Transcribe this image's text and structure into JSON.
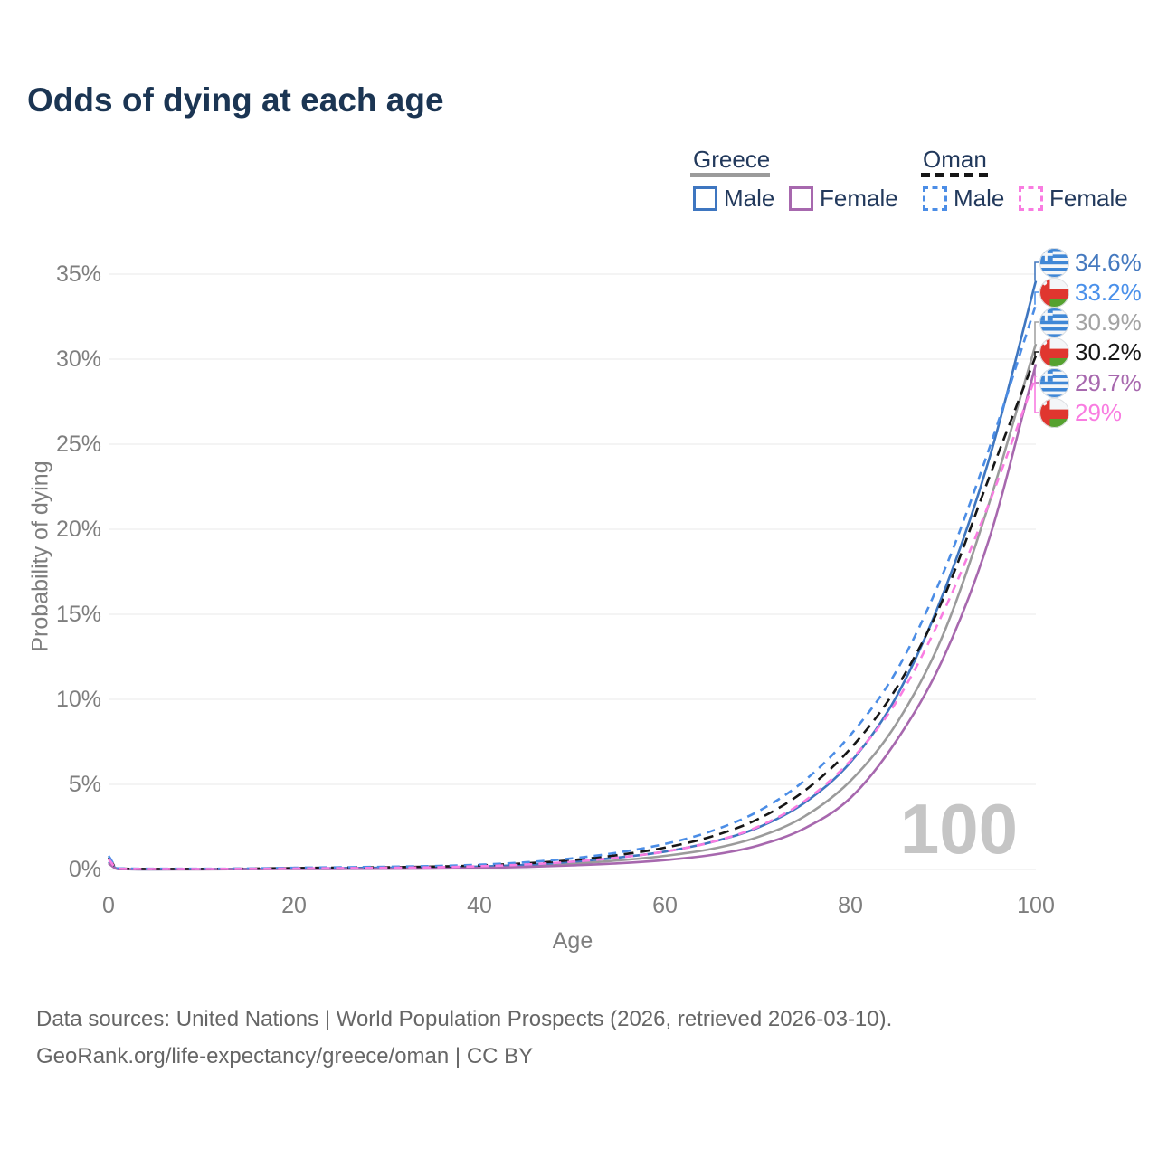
{
  "title": "Odds of dying at each age",
  "legend": {
    "groups": [
      {
        "label": "Greece",
        "line_style": "solid",
        "underline_color": "#9b9b9b",
        "items": [
          {
            "label": "Male",
            "color": "#3e76c0"
          },
          {
            "label": "Female",
            "color": "#a768ae"
          }
        ]
      },
      {
        "label": "Oman",
        "line_style": "dashed",
        "underline_color": "#161616",
        "items": [
          {
            "label": "Male",
            "color": "#4b8de6"
          },
          {
            "label": "Female",
            "color": "#f97ce1"
          }
        ]
      }
    ]
  },
  "chart_data": {
    "type": "line",
    "title": "Odds of dying at each age",
    "xlabel": "Age",
    "ylabel": "Probability of dying",
    "x_range": [
      0,
      100
    ],
    "y_range_percent": [
      0,
      35
    ],
    "grid": "horizontal",
    "x_ticks": [
      "0",
      "20",
      "40",
      "60",
      "80",
      "100"
    ],
    "y_ticks": [
      "35%",
      "30%",
      "25%",
      "20%",
      "15%",
      "10%",
      "5%",
      "0%"
    ],
    "ages": [
      0,
      1,
      5,
      10,
      15,
      20,
      25,
      30,
      35,
      40,
      45,
      50,
      55,
      60,
      65,
      70,
      75,
      80,
      85,
      90,
      95,
      100
    ],
    "series": [
      {
        "id": "greece_all",
        "name": "Greece All",
        "color": "#9b9b9b",
        "dash": "",
        "values": [
          0.4,
          0.03,
          0.01,
          0.01,
          0.02,
          0.05,
          0.06,
          0.07,
          0.09,
          0.13,
          0.21,
          0.34,
          0.53,
          0.8,
          1.2,
          1.9,
          3.1,
          5.2,
          8.6,
          13.8,
          21.6,
          30.9
        ]
      },
      {
        "id": "greece_male",
        "name": "Greece Male",
        "color": "#3e76c0",
        "dash": "",
        "values": [
          0.45,
          0.03,
          0.01,
          0.02,
          0.03,
          0.06,
          0.08,
          0.1,
          0.12,
          0.17,
          0.27,
          0.45,
          0.7,
          1.05,
          1.6,
          2.45,
          3.9,
          6.3,
          10.2,
          16.2,
          24.2,
          34.6
        ]
      },
      {
        "id": "greece_female",
        "name": "Greece Female",
        "color": "#a768ae",
        "dash": "",
        "values": [
          0.35,
          0.02,
          0.01,
          0.01,
          0.02,
          0.03,
          0.03,
          0.04,
          0.06,
          0.09,
          0.15,
          0.24,
          0.36,
          0.55,
          0.85,
          1.4,
          2.4,
          4.2,
          7.6,
          12.4,
          19.5,
          29.7
        ]
      },
      {
        "id": "oman_all",
        "name": "Oman All",
        "color": "#161616",
        "dash": "11 7",
        "values": [
          0.7,
          0.06,
          0.03,
          0.03,
          0.05,
          0.08,
          0.11,
          0.13,
          0.17,
          0.24,
          0.36,
          0.55,
          0.85,
          1.28,
          1.93,
          2.95,
          4.6,
          7.1,
          10.7,
          15.9,
          23.1,
          30.2
        ]
      },
      {
        "id": "oman_male",
        "name": "Oman Male",
        "color": "#4b8de6",
        "dash": "9 7",
        "values": [
          0.8,
          0.07,
          0.04,
          0.04,
          0.06,
          0.1,
          0.13,
          0.16,
          0.2,
          0.28,
          0.42,
          0.65,
          1.0,
          1.5,
          2.25,
          3.4,
          5.2,
          7.9,
          11.7,
          17.4,
          24.8,
          33.2
        ]
      },
      {
        "id": "oman_female",
        "name": "Oman Female",
        "color": "#f97ce1",
        "dash": "9 7",
        "values": [
          0.6,
          0.05,
          0.03,
          0.03,
          0.04,
          0.06,
          0.08,
          0.1,
          0.13,
          0.19,
          0.29,
          0.45,
          0.7,
          1.05,
          1.6,
          2.5,
          4.0,
          6.4,
          9.9,
          15.1,
          21.6,
          29.0
        ]
      }
    ],
    "end_labels": [
      {
        "series": "greece_male",
        "flag": "greece",
        "text": "34.6%",
        "value_pct": 34.6,
        "color": "#4579bf"
      },
      {
        "series": "oman_male",
        "flag": "oman",
        "text": "33.2%",
        "value_pct": 33.2,
        "color": "#4a90ea"
      },
      {
        "series": "greece_all",
        "flag": "greece",
        "text": "30.9%",
        "value_pct": 30.9,
        "color": "#a3a3a3"
      },
      {
        "series": "oman_all",
        "flag": "oman",
        "text": "30.2%",
        "value_pct": 30.2,
        "color": "#161616"
      },
      {
        "series": "greece_female",
        "flag": "greece",
        "text": "29.7%",
        "value_pct": 29.7,
        "color": "#a768ae"
      },
      {
        "series": "oman_female",
        "flag": "oman",
        "text": "29%",
        "value_pct": 29.0,
        "color": "#f97ce1"
      }
    ],
    "watermark": "100"
  },
  "footer": {
    "line1": "Data sources: United Nations | World Population Prospects (2026, retrieved 2026-03-10).",
    "line2": "GeoRank.org/life-expectancy/greece/oman | CC BY"
  }
}
